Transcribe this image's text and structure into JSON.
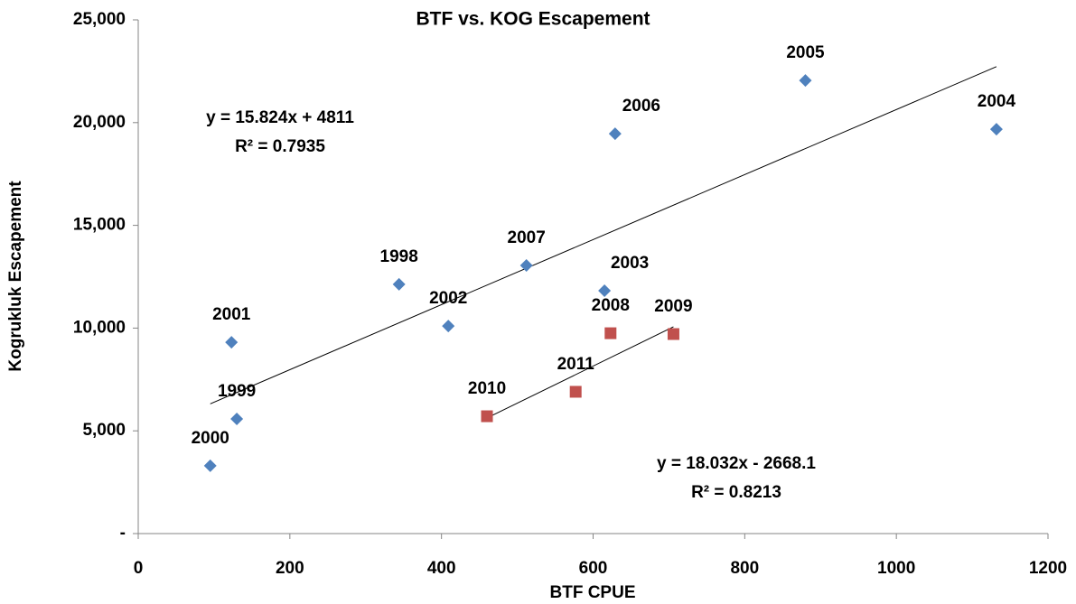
{
  "chart_data": {
    "type": "scatter",
    "title": "BTF vs. KOG Escapement",
    "x_label": "BTF CPUE",
    "y_label": "Kogrukluk Escapement",
    "xlim": [
      0,
      1200
    ],
    "xticks": [
      0,
      200,
      400,
      600,
      800,
      1000,
      1200
    ],
    "ylim": [
      0,
      25000
    ],
    "yticks": [
      {
        "value": 0,
        "label": "-"
      },
      {
        "value": 5000,
        "label": "5,000"
      },
      {
        "value": 10000,
        "label": "10,000"
      },
      {
        "value": 15000,
        "label": "15,000"
      },
      {
        "value": 20000,
        "label": "20,000"
      },
      {
        "value": 25000,
        "label": "25,000"
      }
    ],
    "grid": false,
    "series": [
      {
        "color": "#4f81bd",
        "marker": "diamond",
        "labels": [
          "1998",
          "1999",
          "2000",
          "2001",
          "2002",
          "2003",
          "2004",
          "2005",
          "2006",
          "2007"
        ],
        "x": [
          344,
          130,
          95,
          123,
          409,
          615,
          1132,
          880,
          629,
          512
        ],
        "values": [
          12130,
          5580,
          3300,
          9310,
          10100,
          11820,
          19680,
          22050,
          19460,
          13050
        ],
        "trendline": {
          "slope": 15.824,
          "intercept": 4811,
          "label": "y = 15.824x + 4811",
          "r2_label": "R² = 0.7935"
        }
      },
      {
        "color": "#c0504d",
        "marker": "square",
        "labels": [
          "2008",
          "2009",
          "2010",
          "2011"
        ],
        "x": [
          623,
          706,
          460,
          577
        ],
        "values": [
          9750,
          9710,
          5710,
          6900
        ],
        "trendline": {
          "slope": 18.032,
          "intercept": -2668.1,
          "label": "y = 18.032x - 2668.1",
          "r2_label": "R² = 0.8213"
        }
      }
    ]
  }
}
